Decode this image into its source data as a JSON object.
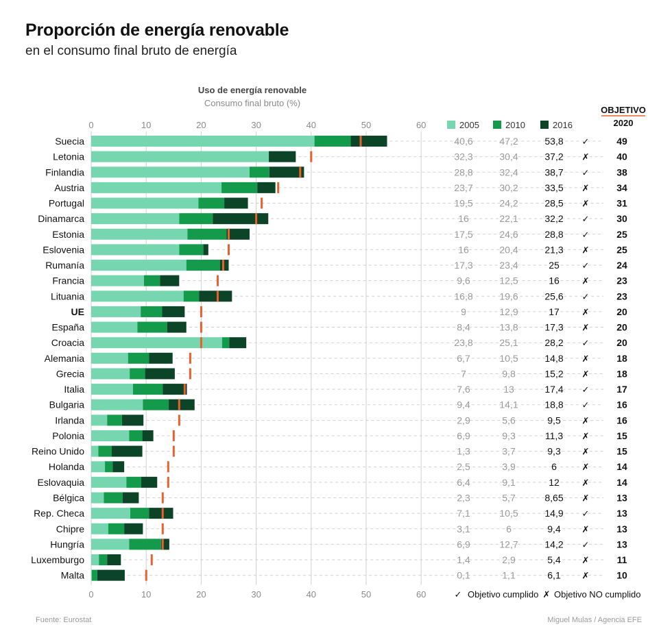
{
  "title": "Proporción de energía renovable",
  "subtitle": "en el consumo final bruto de energía",
  "source": "Fuente: Eurostat",
  "credit": "Miguel Mulas / Agencia EFE",
  "legend": {
    "check_label": "Objetivo cumplido",
    "cross_label": "Objetivo NO cumplido",
    "check_glyph": "✓",
    "cross_glyph": "✗"
  },
  "colors": {
    "y2005": "#76d6b0",
    "y2010": "#139a4a",
    "y2016": "#0c4427",
    "target": "#e8602c",
    "cross": "#d62b2b"
  },
  "chart_data": {
    "type": "bar",
    "orientation": "horizontal",
    "title": "Uso de energía renovable",
    "xlabel": "Consumo final bruto (%)",
    "xlim": [
      0,
      60
    ],
    "x_ticks": [
      0,
      10,
      20,
      30,
      40,
      50,
      60
    ],
    "objective_header": "OBJETIVO",
    "objective_year": "2020",
    "series": [
      {
        "name": "2005",
        "values": [
          40.6,
          32.3,
          28.8,
          23.7,
          19.5,
          16,
          17.5,
          16,
          17.3,
          9.6,
          16.8,
          9,
          8.4,
          23.8,
          6.7,
          7,
          7.6,
          9.4,
          2.9,
          6.9,
          1.3,
          2.5,
          6.4,
          2.3,
          7.1,
          3.1,
          6.9,
          1.4,
          0.1
        ],
        "labels": [
          "40,6",
          "32,3",
          "28,8",
          "23,7",
          "19,5",
          "16",
          "17,5",
          "16",
          "17,3",
          "9,6",
          "16,8",
          "9",
          "8,4",
          "23,8",
          "6,7",
          "7",
          "7,6",
          "9,4",
          "2,9",
          "6,9",
          "1,3",
          "2,5",
          "6,4",
          "2,3",
          "7,1",
          "3,1",
          "6,9",
          "1,4",
          "0,1"
        ]
      },
      {
        "name": "2010",
        "values": [
          47.2,
          30.4,
          32.4,
          30.2,
          24.2,
          22.1,
          24.6,
          20.4,
          23.4,
          12.5,
          19.6,
          12.9,
          13.8,
          25.1,
          10.5,
          9.8,
          13,
          14.1,
          5.6,
          9.3,
          3.7,
          3.9,
          9.1,
          5.7,
          10.5,
          6,
          12.7,
          2.9,
          1.1
        ],
        "labels": [
          "47,2",
          "30,4",
          "32,4",
          "30,2",
          "24,2",
          "22,1",
          "24,6",
          "20,4",
          "23,4",
          "12,5",
          "19,6",
          "12,9",
          "13,8",
          "25,1",
          "10,5",
          "9,8",
          "13",
          "14,1",
          "5,6",
          "9,3",
          "3,7",
          "3,9",
          "9,1",
          "5,7",
          "10,5",
          "6",
          "12,7",
          "2,9",
          "1,1"
        ]
      },
      {
        "name": "2016",
        "values": [
          53.8,
          37.2,
          38.7,
          33.5,
          28.5,
          32.2,
          28.8,
          21.3,
          25,
          16,
          25.6,
          17,
          17.3,
          28.2,
          14.8,
          15.2,
          17.4,
          18.8,
          9.5,
          11.3,
          9.3,
          6,
          12,
          8.65,
          14.9,
          9.4,
          14.2,
          5.4,
          6.1
        ],
        "labels": [
          "53,8",
          "37,2",
          "38,7",
          "33,5",
          "28,5",
          "32,2",
          "28,8",
          "21,3",
          "25",
          "16",
          "25,6",
          "17",
          "17,3",
          "28,2",
          "14,8",
          "15,2",
          "17,4",
          "18,8",
          "9,5",
          "11,3",
          "9,3",
          "6",
          "12",
          "8,65",
          "14,9",
          "9,4",
          "14,2",
          "5,4",
          "6,1"
        ]
      }
    ],
    "rows": [
      {
        "country": "Suecia",
        "target": 49,
        "met": true
      },
      {
        "country": "Letonia",
        "target": 40,
        "met": false
      },
      {
        "country": "Finlandia",
        "target": 38,
        "met": true
      },
      {
        "country": "Austria",
        "target": 34,
        "met": false
      },
      {
        "country": "Portugal",
        "target": 31,
        "met": false
      },
      {
        "country": "Dinamarca",
        "target": 30,
        "met": true
      },
      {
        "country": "Estonia",
        "target": 25,
        "met": true
      },
      {
        "country": "Eslovenia",
        "target": 25,
        "met": false
      },
      {
        "country": "Rumanía",
        "target": 24,
        "met": true
      },
      {
        "country": "Francia",
        "target": 23,
        "met": false
      },
      {
        "country": "Lituania",
        "target": 23,
        "met": true
      },
      {
        "country": "UE",
        "target": 20,
        "met": false,
        "bold": true
      },
      {
        "country": "España",
        "target": 20,
        "met": false
      },
      {
        "country": "Croacia",
        "target": 20,
        "met": true
      },
      {
        "country": "Alemania",
        "target": 18,
        "met": false
      },
      {
        "country": "Grecia",
        "target": 18,
        "met": false
      },
      {
        "country": "Italia",
        "target": 17,
        "met": true
      },
      {
        "country": "Bulgaria",
        "target": 16,
        "met": true
      },
      {
        "country": "Irlanda",
        "target": 16,
        "met": false
      },
      {
        "country": "Polonia",
        "target": 15,
        "met": false
      },
      {
        "country": "Reino Unido",
        "target": 15,
        "met": false
      },
      {
        "country": "Holanda",
        "target": 14,
        "met": false
      },
      {
        "country": "Eslovaquia",
        "target": 14,
        "met": false
      },
      {
        "country": "Bélgica",
        "target": 13,
        "met": false
      },
      {
        "country": "Rep. Checa",
        "target": 13,
        "met": true
      },
      {
        "country": "Chipre",
        "target": 13,
        "met": false
      },
      {
        "country": "Hungría",
        "target": 13,
        "met": true
      },
      {
        "country": "Luxemburgo",
        "target": 11,
        "met": false
      },
      {
        "country": "Malta",
        "target": 10,
        "met": false
      }
    ]
  }
}
